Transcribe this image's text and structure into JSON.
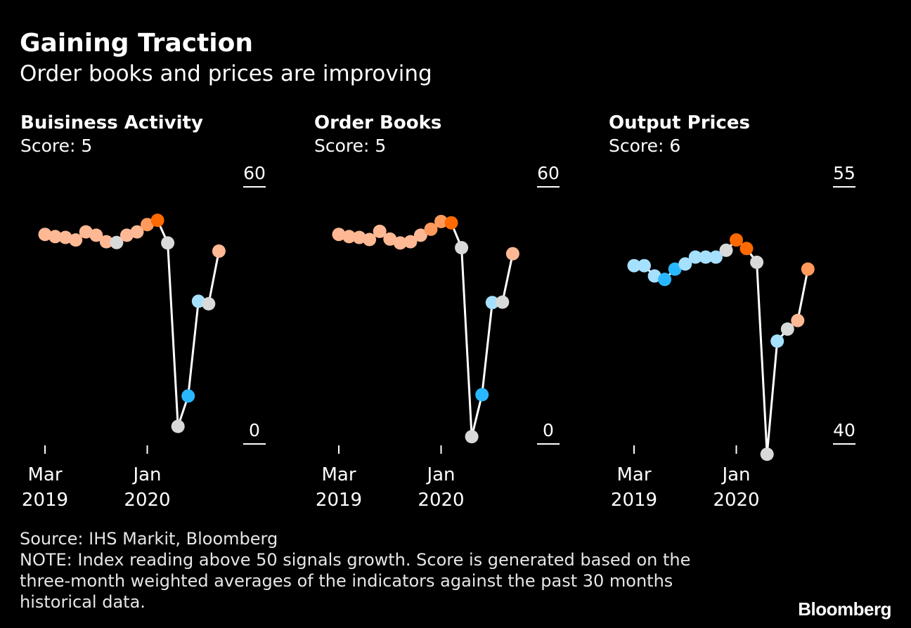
{
  "title": "Gaining Traction",
  "subtitle": "Order books and prices are improving",
  "colors": {
    "background": "#000000",
    "line": "#ffffff",
    "neutral": "#d9d9d9",
    "warm_light": "#ffb894",
    "warm_mid": "#ff9a5c",
    "warm_dark": "#ff6a00",
    "cool_light": "#a6e0ff",
    "cool_dark": "#29b8ff"
  },
  "chart_data": [
    {
      "type": "line",
      "title": "Buisiness Activity",
      "score": "Score: 5",
      "x": [
        "2019-03",
        "2019-04",
        "2019-05",
        "2019-06",
        "2019-07",
        "2019-08",
        "2019-09",
        "2019-10",
        "2019-11",
        "2019-12",
        "2020-01",
        "2020-02",
        "2020-03",
        "2020-04",
        "2020-05",
        "2020-06",
        "2020-07",
        "2020-08"
      ],
      "values": [
        48.9,
        48.4,
        48.2,
        47.6,
        49.5,
        48.7,
        47.2,
        47.0,
        48.7,
        49.5,
        51.2,
        52.2,
        46.9,
        4.1,
        11.2,
        33.3,
        32.7,
        45.0
      ],
      "point_colors": [
        "warm_light",
        "warm_light",
        "warm_light",
        "warm_light",
        "warm_light",
        "warm_light",
        "warm_light",
        "neutral",
        "warm_light",
        "warm_light",
        "warm_mid",
        "warm_dark",
        "neutral",
        "neutral",
        "cool_dark",
        "cool_light",
        "neutral",
        "warm_light"
      ],
      "ylim": [
        0,
        60
      ],
      "yticks": [
        "0",
        "60"
      ],
      "xticks": [
        {
          "x": "2019-03",
          "label": [
            "Mar",
            "2019"
          ]
        },
        {
          "x": "2020-01",
          "label": [
            "Jan",
            "2020"
          ]
        }
      ],
      "grid": false
    },
    {
      "type": "line",
      "title": "Order Books",
      "score": "Score: 5",
      "x": [
        "2019-03",
        "2019-04",
        "2019-05",
        "2019-06",
        "2019-07",
        "2019-08",
        "2019-09",
        "2019-10",
        "2019-11",
        "2019-12",
        "2020-01",
        "2020-02",
        "2020-03",
        "2020-04",
        "2020-05",
        "2020-06",
        "2020-07",
        "2020-08"
      ],
      "values": [
        48.9,
        48.4,
        48.2,
        47.7,
        49.6,
        47.8,
        46.9,
        47.2,
        48.7,
        50.1,
        51.9,
        51.6,
        45.8,
        1.7,
        11.5,
        33.0,
        33.1,
        44.4
      ],
      "point_colors": [
        "warm_light",
        "warm_light",
        "warm_light",
        "warm_light",
        "warm_light",
        "warm_light",
        "warm_light",
        "warm_light",
        "warm_light",
        "warm_mid",
        "warm_mid",
        "warm_dark",
        "neutral",
        "neutral",
        "cool_dark",
        "cool_light",
        "neutral",
        "warm_light"
      ],
      "ylim": [
        0,
        60
      ],
      "yticks": [
        "0",
        "60"
      ],
      "xticks": [
        {
          "x": "2019-03",
          "label": [
            "Mar",
            "2019"
          ]
        },
        {
          "x": "2020-01",
          "label": [
            "Jan",
            "2020"
          ]
        }
      ],
      "grid": false
    },
    {
      "type": "line",
      "title": "Output Prices",
      "score": "Score: 6",
      "x": [
        "2019-03",
        "2019-04",
        "2019-05",
        "2019-06",
        "2019-07",
        "2019-08",
        "2019-09",
        "2019-10",
        "2019-11",
        "2019-12",
        "2020-01",
        "2020-02",
        "2020-03",
        "2020-04",
        "2020-05",
        "2020-06",
        "2020-07",
        "2020-08"
      ],
      "values": [
        50.4,
        50.4,
        49.8,
        49.6,
        50.2,
        50.5,
        50.9,
        50.9,
        50.9,
        51.3,
        51.9,
        51.4,
        50.6,
        39.4,
        46.0,
        46.7,
        47.2,
        50.2
      ],
      "point_colors": [
        "cool_light",
        "cool_light",
        "cool_light",
        "cool_dark",
        "cool_dark",
        "cool_light",
        "cool_light",
        "cool_light",
        "cool_light",
        "neutral",
        "warm_dark",
        "warm_dark",
        "neutral",
        "neutral",
        "cool_light",
        "neutral",
        "warm_light",
        "warm_mid"
      ],
      "ylim": [
        40,
        55
      ],
      "yticks": [
        "40",
        "55"
      ],
      "xticks": [
        {
          "x": "2019-03",
          "label": [
            "Mar",
            "2019"
          ]
        },
        {
          "x": "2020-01",
          "label": [
            "Jan",
            "2020"
          ]
        }
      ],
      "grid": false
    }
  ],
  "footer": {
    "source": "Source: IHS Markit, Bloomberg",
    "note_lines": [
      "NOTE: Index reading above 50 signals growth. Score is generated based on the",
      "three-month weighted averages of the indicators against the past 30 months",
      "historical data."
    ]
  },
  "brand": "Bloomberg"
}
